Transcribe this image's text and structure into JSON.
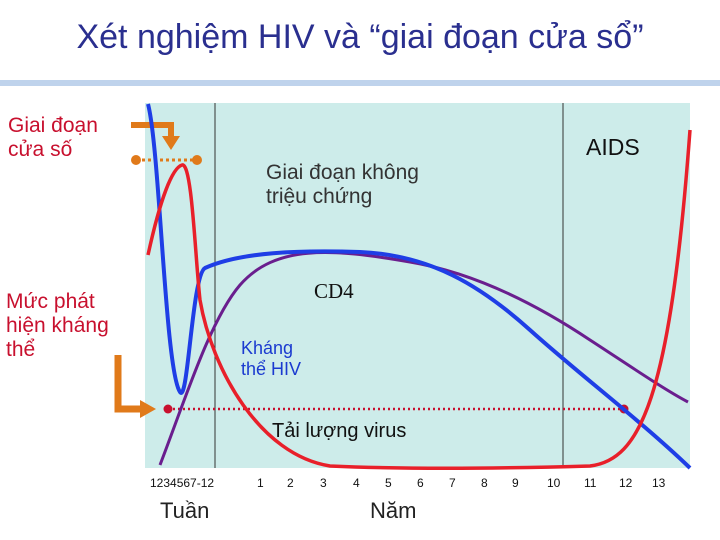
{
  "title": "Xét nghiệm HIV và “giai đoạn cửa sổ”",
  "labels": {
    "window_line1": "Giai đoạn",
    "window_line2": "cửa số",
    "detect_line1": "Mức phát",
    "detect_line2": "hiện kháng",
    "detect_line3": "thể",
    "asym_line1": "Giai đoạn không",
    "asym_line2": "triệu chứng",
    "aids": "AIDS",
    "cd4": "CD4",
    "antibody_line1": "Kháng",
    "antibody_line2": "thể HIV",
    "viral_load": "Tải lượng virus",
    "axis_weeks": "Tuần",
    "axis_years": "Năm"
  },
  "ticks": [
    "1234567-12",
    "1",
    "2",
    "3",
    "4",
    "5",
    "6",
    "7",
    "8",
    "9",
    "10",
    "11",
    "12",
    "13"
  ],
  "colors": {
    "title": "#2a2f8f",
    "panel": "#cdecea",
    "red_curve": "#e8202a",
    "blue_curve": "#1f3ee6",
    "purple_curve": "#6a1e8e",
    "orange": "#e07a1a",
    "label_red": "#c8102e"
  },
  "icons": [
    "elbow-arrow-icon",
    "elbow-arrow-icon"
  ]
}
